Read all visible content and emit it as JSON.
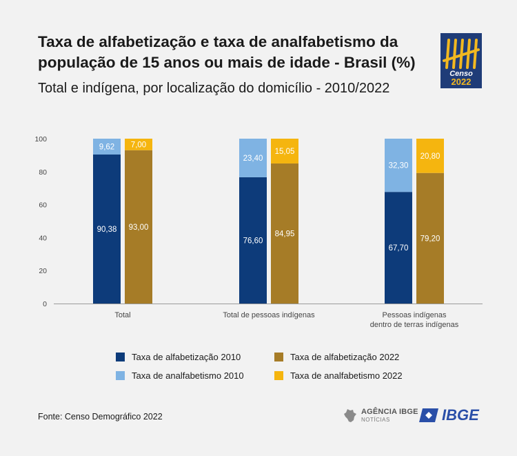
{
  "header": {
    "title_lines": [
      "Taxa de alfabetização e taxa de analfabetismo da",
      "população de 15 anos ou mais de idade - Brasil (%)"
    ],
    "subtitle": "Total e indígena, por localização do domicílio - 2010/2022"
  },
  "logo": {
    "line1": "Censo",
    "line2": "2022",
    "bg": "#1f3c78",
    "fg": "#f2b820"
  },
  "chart_data": {
    "type": "bar",
    "stacked": true,
    "ylim": [
      0,
      100
    ],
    "yticks": [
      "100",
      "80",
      "60",
      "40",
      "20",
      "0"
    ],
    "grid": false,
    "categories": [
      {
        "lines": [
          "Total"
        ]
      },
      {
        "lines": [
          "Total de pessoas indígenas"
        ]
      },
      {
        "lines": [
          "Pessoas indígenas",
          "dentro de terras indígenas"
        ]
      }
    ],
    "stacks": [
      {
        "year": "2010",
        "bottom": {
          "name": "Taxa de alfabetização 2010",
          "color": "#0d3b7a",
          "values": [
            90.38,
            76.6,
            67.7
          ],
          "labels": [
            "90,38",
            "76,60",
            "67,70"
          ]
        },
        "top": {
          "name": "Taxa de analfabetismo 2010",
          "color": "#7fb3e3",
          "values": [
            9.62,
            23.4,
            32.3
          ],
          "labels": [
            "9,62",
            "23,40",
            "32,30"
          ]
        }
      },
      {
        "year": "2022",
        "bottom": {
          "name": "Taxa de alfabetização 2022",
          "color": "#a67c27",
          "values": [
            93.0,
            84.95,
            79.2
          ],
          "labels": [
            "93,00",
            "84,95",
            "79,20"
          ]
        },
        "top": {
          "name": "Taxa de analfabetismo 2022",
          "color": "#f5b50f",
          "values": [
            7.0,
            15.05,
            20.8
          ],
          "labels": [
            "7,00",
            "15,05",
            "20,80"
          ]
        }
      }
    ],
    "legend": [
      {
        "label": "Taxa de alfabetização 2010",
        "color": "#0d3b7a"
      },
      {
        "label": "Taxa de alfabetização 2022",
        "color": "#a67c27"
      },
      {
        "label": "Taxa de analfabetismo 2010",
        "color": "#7fb3e3"
      },
      {
        "label": "Taxa de analfabetismo 2022",
        "color": "#f5b50f"
      }
    ],
    "legend_position": "bottom"
  },
  "footer": {
    "source": "Fonte: Censo Demográfico 2022",
    "agencia_main": "AGÊNCIA IBGE",
    "agencia_sub": "NOTÍCIAS",
    "ibge_label": "IBGE"
  }
}
